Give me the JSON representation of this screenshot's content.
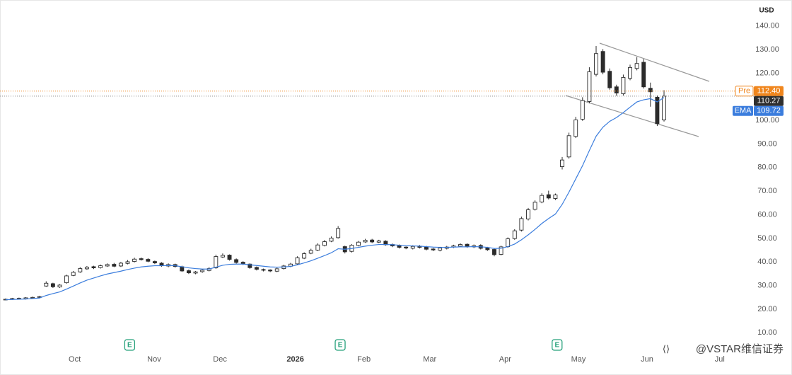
{
  "chart_data": {
    "type": "candlestick",
    "currency": "USD",
    "x": [
      0,
      1,
      2,
      3,
      4,
      5,
      6,
      7,
      8,
      9,
      10,
      11,
      12,
      13,
      14,
      15,
      16,
      17,
      18,
      19,
      20,
      21,
      22,
      23,
      24,
      25,
      26,
      27,
      28,
      29,
      30,
      31,
      32,
      33,
      34,
      35,
      36,
      37,
      38,
      39,
      40,
      41,
      42,
      43,
      44,
      45,
      46,
      47,
      48,
      49,
      50,
      51,
      52,
      53,
      54,
      55,
      56,
      57,
      58,
      59,
      60,
      61,
      62,
      63,
      64,
      65,
      66,
      67,
      68,
      69,
      70,
      71,
      72,
      73,
      74,
      75,
      76,
      77,
      78,
      79,
      80,
      81,
      82,
      83,
      84,
      85,
      86,
      87,
      88,
      89,
      90,
      91,
      92,
      93,
      94,
      95,
      96,
      97
    ],
    "open": [
      24.0,
      24.2,
      24.6,
      24.4,
      24.8,
      25.0,
      29.8,
      30.8,
      29.4,
      31.2,
      34.3,
      35.8,
      37.1,
      38.0,
      37.6,
      38.3,
      39.0,
      38.3,
      39.4,
      40.2,
      41.4,
      41.1,
      40.2,
      39.5,
      38.3,
      38.9,
      38.0,
      36.3,
      35.3,
      35.9,
      36.4,
      37.5,
      42.1,
      42.9,
      41.0,
      39.9,
      39.1,
      37.7,
      36.8,
      36.6,
      36.1,
      37.2,
      38.2,
      39.2,
      41.6,
      43.7,
      45.0,
      47.0,
      48.8,
      50.3,
      46.5,
      44.5,
      47.0,
      48.5,
      49.3,
      48.4,
      48.8,
      47.4,
      46.9,
      46.3,
      45.8,
      46.7,
      46.3,
      45.5,
      45.0,
      45.8,
      46.4,
      46.7,
      47.5,
      46.4,
      47.0,
      45.9,
      45.3,
      43.2,
      46.5,
      49.9,
      53.5,
      58.2,
      62.3,
      65.4,
      68.5,
      66.9,
      80.4,
      84.5,
      93.2,
      100.5,
      108.0,
      119.5,
      129.2,
      120.8,
      114.2,
      111.3,
      117.8,
      122.0,
      124.6,
      113.6,
      109.8,
      100.2
    ],
    "high": [
      24.5,
      24.8,
      24.9,
      25.1,
      25.3,
      25.6,
      31.8,
      31.2,
      30.6,
      34.6,
      36.2,
      37.8,
      38.3,
      38.4,
      38.9,
      39.4,
      39.6,
      40.0,
      40.8,
      41.8,
      41.9,
      41.6,
      40.6,
      39.9,
      39.4,
      39.3,
      38.4,
      36.8,
      36.2,
      37.0,
      37.8,
      43.1,
      43.6,
      43.2,
      41.5,
      40.3,
      39.4,
      38.1,
      37.2,
      36.9,
      37.6,
      38.8,
      39.6,
      42.4,
      44.1,
      45.6,
      47.9,
      49.3,
      50.8,
      55.2,
      46.9,
      47.6,
      48.9,
      49.8,
      49.8,
      49.4,
      49.2,
      47.8,
      47.4,
      46.6,
      47.1,
      47.2,
      46.8,
      45.9,
      46.4,
      46.8,
      47.3,
      47.9,
      47.9,
      47.4,
      47.5,
      46.4,
      45.7,
      46.9,
      50.4,
      53.9,
      59.2,
      62.9,
      66.1,
      69.1,
      70.2,
      69.0,
      84.5,
      94.8,
      101.5,
      109.8,
      122.5,
      131.5,
      130.2,
      122.0,
      115.1,
      119.4,
      123.6,
      126.8,
      126.0,
      116.0,
      110.5,
      112.8
    ],
    "low": [
      23.8,
      23.9,
      24.1,
      24.1,
      24.5,
      24.7,
      29.5,
      29.0,
      29.0,
      30.8,
      34.0,
      35.4,
      36.7,
      37.0,
      37.2,
      37.9,
      37.8,
      37.9,
      39.0,
      39.8,
      40.6,
      39.9,
      39.1,
      38.0,
      37.8,
      37.6,
      35.8,
      34.9,
      34.8,
      35.4,
      36.0,
      37.1,
      41.7,
      40.6,
      39.3,
      38.7,
      37.1,
      36.4,
      36.0,
      35.7,
      35.7,
      36.8,
      37.8,
      38.8,
      41.2,
      43.3,
      44.6,
      46.6,
      48.4,
      49.9,
      43.6,
      44.0,
      46.6,
      48.1,
      48.0,
      48.0,
      46.9,
      46.3,
      45.7,
      45.4,
      45.3,
      45.7,
      44.9,
      44.6,
      44.5,
      45.3,
      45.9,
      46.3,
      46.0,
      45.9,
      45.3,
      44.7,
      42.4,
      42.8,
      46.0,
      49.4,
      52.9,
      57.6,
      61.8,
      64.9,
      66.5,
      66.2,
      79.2,
      83.8,
      92.5,
      99.8,
      107.2,
      118.6,
      119.5,
      113.0,
      110.4,
      110.5,
      117.0,
      121.2,
      113.5,
      105.8,
      97.6,
      99.5
    ],
    "close": [
      24.2,
      24.5,
      24.4,
      24.8,
      25.0,
      25.3,
      31.0,
      29.5,
      30.2,
      34.1,
      35.6,
      37.2,
      37.8,
      37.5,
      38.4,
      38.9,
      38.2,
      39.5,
      40.1,
      41.2,
      41.0,
      40.3,
      39.6,
      38.4,
      38.9,
      38.1,
      36.2,
      35.4,
      35.8,
      36.5,
      37.2,
      42.3,
      42.8,
      41.1,
      39.8,
      39.2,
      37.6,
      36.9,
      36.5,
      36.2,
      37.1,
      38.3,
      39.1,
      41.8,
      43.5,
      44.9,
      47.2,
      48.6,
      50.1,
      54.2,
      44.3,
      47.1,
      48.4,
      49.2,
      48.5,
      48.9,
      47.3,
      46.8,
      46.2,
      45.9,
      46.6,
      46.2,
      45.4,
      45.1,
      45.9,
      46.3,
      46.8,
      47.4,
      46.5,
      46.9,
      45.8,
      45.2,
      43.1,
      46.4,
      49.8,
      53.2,
      58.4,
      62.1,
      65.3,
      68.2,
      67.1,
      68.4,
      83.2,
      93.5,
      100.2,
      108.4,
      120.6,
      128.3,
      120.4,
      113.8,
      111.6,
      118.2,
      122.4,
      124.1,
      114.2,
      112.1,
      98.6,
      110.27
    ],
    "up_color": "#ffffff",
    "down_color": "#2b2b2b",
    "last_color": "#2f2f2f",
    "indicators": [
      {
        "name": "EMA",
        "color": "#3b7ddd",
        "values": [
          24.0,
          24.1,
          24.2,
          24.3,
          24.5,
          24.7,
          25.8,
          26.6,
          27.3,
          28.5,
          29.8,
          31.1,
          32.3,
          33.2,
          34.1,
          34.9,
          35.5,
          36.1,
          36.8,
          37.4,
          37.9,
          38.2,
          38.4,
          38.4,
          38.5,
          38.4,
          38.0,
          37.5,
          37.2,
          37.0,
          37.0,
          37.8,
          38.6,
          39.0,
          39.1,
          39.1,
          38.8,
          38.5,
          38.2,
          37.9,
          37.8,
          37.9,
          38.1,
          38.8,
          39.6,
          40.5,
          41.6,
          42.7,
          43.9,
          45.6,
          45.4,
          45.7,
          46.2,
          46.7,
          47.1,
          47.4,
          47.4,
          47.3,
          47.1,
          46.9,
          46.8,
          46.7,
          46.5,
          46.3,
          46.2,
          46.2,
          46.3,
          46.4,
          46.4,
          46.5,
          46.4,
          46.2,
          45.7,
          45.8,
          46.5,
          47.6,
          49.4,
          51.5,
          53.8,
          56.3,
          58.4,
          60.3,
          64.4,
          69.6,
          75.2,
          80.8,
          87.2,
          93.3,
          97.1,
          99.6,
          101.2,
          103.3,
          105.6,
          107.8,
          108.7,
          109.2,
          107.8,
          109.72
        ]
      }
    ],
    "pre_market": {
      "name": "Pre",
      "value": 112.4,
      "value_label": "112.40",
      "color": "#f0861d"
    },
    "ylim": [
      2,
      151
    ],
    "yticks": [
      {
        "value": 10,
        "label": "10.00"
      },
      {
        "value": 20,
        "label": "20.00"
      },
      {
        "value": 30,
        "label": "30.00"
      },
      {
        "value": 40,
        "label": "40.00"
      },
      {
        "value": 50,
        "label": "50.00"
      },
      {
        "value": 60,
        "label": "60.00"
      },
      {
        "value": 70,
        "label": "70.00"
      },
      {
        "value": 80,
        "label": "80.00"
      },
      {
        "value": 90,
        "label": "90.00"
      },
      {
        "value": 100,
        "label": "100.00"
      },
      {
        "value": 110,
        "label": "110.00"
      },
      {
        "value": 120,
        "label": "120.00"
      },
      {
        "value": 130,
        "label": "130.00"
      },
      {
        "value": 140,
        "label": "140.00"
      }
    ],
    "xlim": [
      -0.8,
      109.6
    ],
    "xticks": [
      {
        "value": 10.2,
        "label": "Oct"
      },
      {
        "value": 21.9,
        "label": "Nov"
      },
      {
        "value": 31.6,
        "label": "Dec"
      },
      {
        "value": 42.7,
        "label": "2026"
      },
      {
        "value": 52.8,
        "label": "Feb"
      },
      {
        "value": 62.5,
        "label": "Mar"
      },
      {
        "value": 73.6,
        "label": "Apr"
      },
      {
        "value": 84.4,
        "label": "May"
      },
      {
        "value": 94.5,
        "label": "Jun"
      },
      {
        "value": 105.2,
        "label": "Jul"
      }
    ],
    "earnings": [
      {
        "x": 18.3,
        "label": "E"
      },
      {
        "x": 49.3,
        "label": "E"
      },
      {
        "x": 81.25,
        "label": "E"
      }
    ],
    "watermark": "@VSTAR维信证券"
  }
}
